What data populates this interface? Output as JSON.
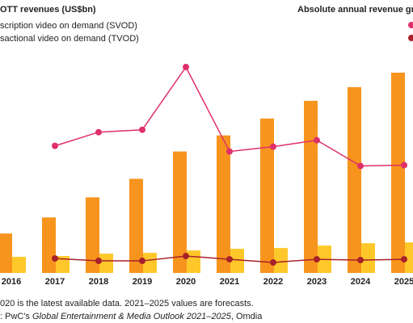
{
  "chart_data": {
    "type": "bar",
    "title": "OTT revenues (US$bn)",
    "growth_title": "Absolute annual revenue growth",
    "categories": [
      "2016",
      "2017",
      "2018",
      "2019",
      "2020",
      "2021",
      "2022",
      "2023",
      "2024",
      "2025"
    ],
    "series": [
      {
        "name": "scription video on demand (SVOD)",
        "type": "bar",
        "color": "#f7941d",
        "values": [
          49,
          69,
          94,
          117,
          151,
          171,
          192,
          214,
          231,
          249
        ]
      },
      {
        "name": "sactional video on demand (TVOD)",
        "type": "bar",
        "color": "#ffc82a",
        "values": [
          20,
          21,
          24,
          25,
          28,
          30,
          31,
          34,
          37,
          38
        ]
      },
      {
        "type": "line",
        "axis": "y2",
        "color": "#e0306a",
        "values": [
          null,
          158,
          175,
          178,
          256,
          151,
          157,
          165,
          133,
          134
        ]
      },
      {
        "type": "line",
        "axis": "y2",
        "color": "#a8202a",
        "values": [
          null,
          18,
          15,
          15,
          21,
          17,
          13,
          17,
          16,
          17
        ]
      }
    ],
    "ylim": [
      0,
      250
    ],
    "y2lim": [
      0,
      250
    ],
    "notes": [
      "020 is the latest available data. 2021–2025 values are forecasts.",
      [
        ": PwC's ",
        "Global Entertainment & Media Outlook 2021–2025",
        ", Omdia"
      ]
    ]
  }
}
